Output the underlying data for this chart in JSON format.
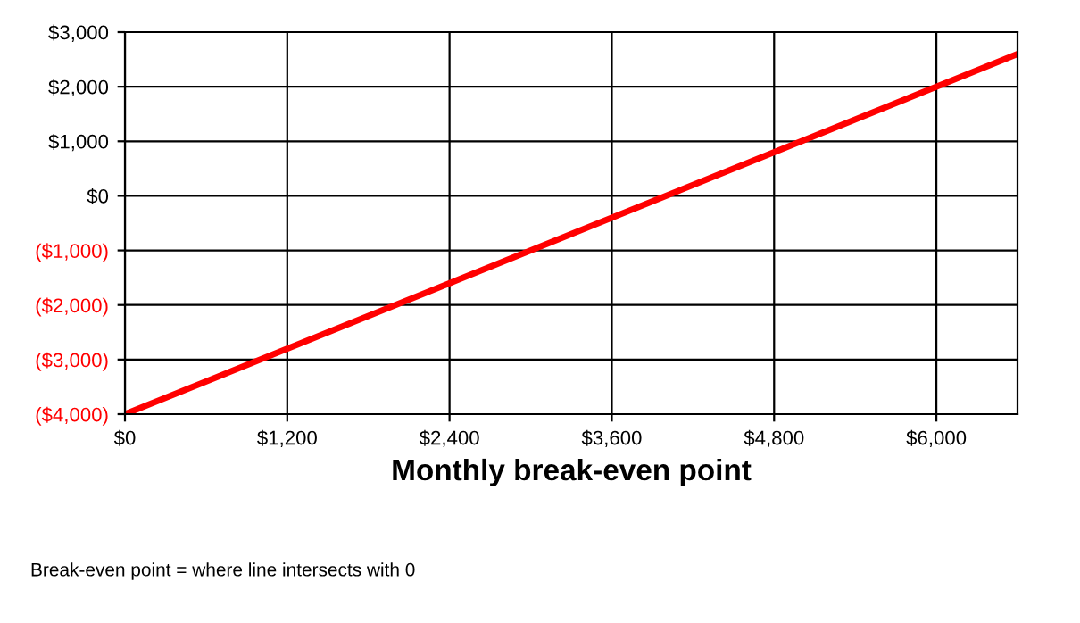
{
  "chart_data": {
    "type": "line",
    "xlabel": "Monthly break-even point",
    "x": [
      0,
      6600
    ],
    "series": [
      {
        "color": "#ff0000",
        "values": [
          -4000,
          2600
        ]
      }
    ],
    "xlim": [
      0,
      6600
    ],
    "ylim": [
      -4000,
      3000
    ],
    "xticks": [
      {
        "value": 0,
        "label": "$0"
      },
      {
        "value": 1200,
        "label": "$1,200"
      },
      {
        "value": 2400,
        "label": "$2,400"
      },
      {
        "value": 3600,
        "label": "$3,600"
      },
      {
        "value": 4800,
        "label": "$4,800"
      },
      {
        "value": 6000,
        "label": "$6,000"
      }
    ],
    "yticks": [
      {
        "value": -4000,
        "label": "($4,000)"
      },
      {
        "value": -3000,
        "label": "($3,000)"
      },
      {
        "value": -2000,
        "label": "($2,000)"
      },
      {
        "value": -1000,
        "label": "($1,000)"
      },
      {
        "value": 0,
        "label": "$0"
      },
      {
        "value": 1000,
        "label": "$1,000"
      },
      {
        "value": 2000,
        "label": "$2,000"
      },
      {
        "value": 3000,
        "label": "$3,000"
      }
    ],
    "grid": true,
    "legend": false,
    "marker": "none",
    "line_style": "solid",
    "annotations": [
      "Break-even point = where line intersects with 0"
    ]
  }
}
